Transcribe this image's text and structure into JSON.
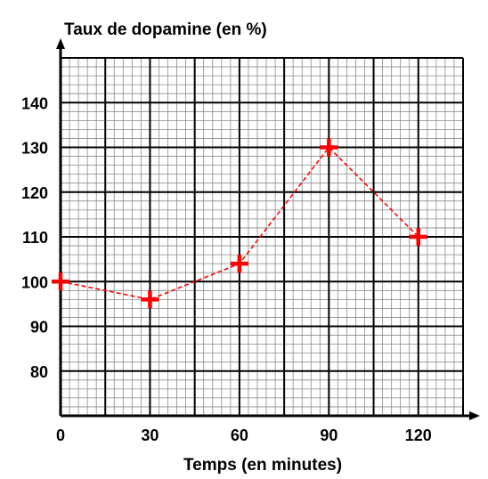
{
  "chart_data": {
    "type": "line",
    "title": "",
    "ylabel": "Taux de dopamine (en %)",
    "xlabel": "Temps (en minutes)",
    "x": [
      0,
      30,
      60,
      90,
      120
    ],
    "series": [
      {
        "values": [
          100,
          96,
          104,
          130,
          110
        ],
        "color": "#ff0000",
        "marker": "cross",
        "line_style": "dashed"
      }
    ],
    "xticks": [
      "0",
      "30",
      "60",
      "90",
      "120"
    ],
    "yticks": [
      "80",
      "90",
      "100",
      "110",
      "120",
      "130",
      "140"
    ],
    "xlim": [
      0,
      135
    ],
    "ylim": [
      70,
      150
    ],
    "grid": true
  }
}
